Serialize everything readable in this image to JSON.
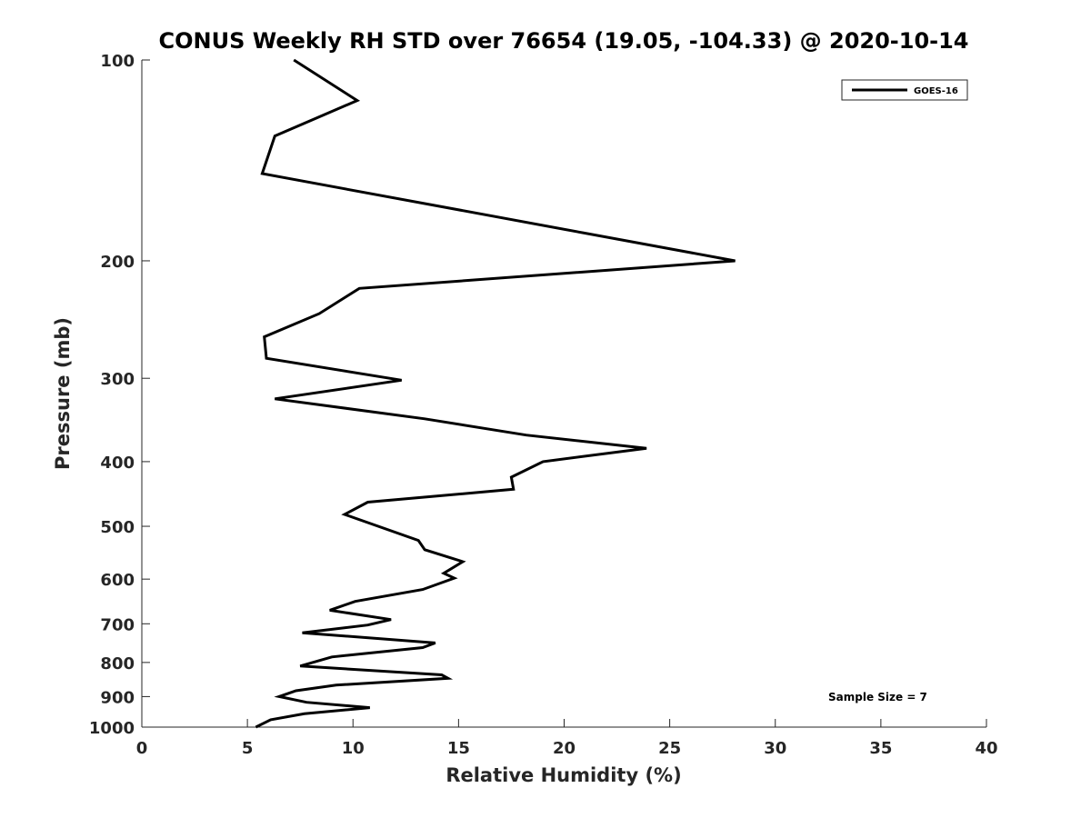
{
  "chart_data": {
    "type": "line",
    "title": "CONUS Weekly RH STD over 76654 (19.05, -104.33) @ 2020-10-14",
    "xlabel": "Relative Humidity (%)",
    "ylabel": "Pressure (mb)",
    "xlim": [
      0,
      40
    ],
    "ylim": [
      100,
      1000
    ],
    "yscale": "log",
    "yreversed": true,
    "xticks": [
      0,
      5,
      10,
      15,
      20,
      25,
      30,
      35,
      40
    ],
    "yticks": [
      100,
      200,
      300,
      400,
      500,
      600,
      700,
      800,
      900,
      1000
    ],
    "legend_position": "top-right",
    "grid": false,
    "series": [
      {
        "name": "GOES-16",
        "color": "#000000",
        "points": [
          [
            7.2,
            100
          ],
          [
            10.2,
            115
          ],
          [
            6.3,
            130
          ],
          [
            5.7,
            148
          ],
          [
            28.1,
            200
          ],
          [
            10.3,
            220
          ],
          [
            8.4,
            240
          ],
          [
            5.8,
            260
          ],
          [
            5.9,
            280
          ],
          [
            12.3,
            302
          ],
          [
            6.3,
            322
          ],
          [
            13.4,
            345
          ],
          [
            18.2,
            365
          ],
          [
            23.9,
            382
          ],
          [
            19.0,
            400
          ],
          [
            17.5,
            422
          ],
          [
            17.6,
            440
          ],
          [
            10.7,
            460
          ],
          [
            9.6,
            480
          ],
          [
            13.1,
            525
          ],
          [
            13.4,
            542
          ],
          [
            15.2,
            565
          ],
          [
            14.3,
            588
          ],
          [
            14.8,
            598
          ],
          [
            13.3,
            622
          ],
          [
            10.1,
            648
          ],
          [
            8.9,
            668
          ],
          [
            11.8,
            690
          ],
          [
            10.7,
            703
          ],
          [
            7.6,
            722
          ],
          [
            13.9,
            748
          ],
          [
            13.3,
            760
          ],
          [
            9.0,
            785
          ],
          [
            7.5,
            810
          ],
          [
            14.2,
            835
          ],
          [
            14.5,
            845
          ],
          [
            9.2,
            865
          ],
          [
            7.3,
            882
          ],
          [
            6.5,
            900
          ],
          [
            7.8,
            918
          ],
          [
            10.8,
            935
          ],
          [
            7.7,
            955
          ],
          [
            6.1,
            975
          ],
          [
            5.4,
            1000
          ]
        ]
      }
    ],
    "annotations": [
      "Sample Size = 7"
    ]
  }
}
